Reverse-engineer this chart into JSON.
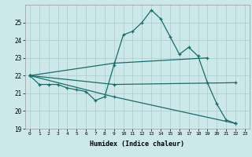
{
  "xlabel": "Humidex (Indice chaleur)",
  "ylabel": "",
  "background_color": "#cce8e8",
  "grid_color": "#aacccc",
  "line_color": "#1a6b6b",
  "xlim": [
    -0.5,
    23.5
  ],
  "ylim": [
    19,
    26
  ],
  "yticks": [
    19,
    20,
    21,
    22,
    23,
    24,
    25
  ],
  "xticks": [
    0,
    1,
    2,
    3,
    4,
    5,
    6,
    7,
    8,
    9,
    10,
    11,
    12,
    13,
    14,
    15,
    16,
    17,
    18,
    19,
    20,
    21,
    22,
    23
  ],
  "series": [
    {
      "x": [
        0,
        1,
        2,
        3,
        4,
        5,
        6,
        7,
        8,
        9,
        10,
        11,
        12,
        13,
        14,
        15,
        16,
        17,
        18,
        19,
        20,
        21,
        22
      ],
      "y": [
        22.0,
        21.5,
        21.5,
        21.5,
        21.3,
        21.2,
        21.1,
        20.6,
        20.8,
        22.6,
        24.3,
        24.5,
        25.0,
        25.7,
        25.2,
        24.2,
        23.2,
        23.6,
        23.1,
        21.6,
        20.4,
        19.5,
        19.3
      ]
    },
    {
      "x": [
        0,
        9,
        19
      ],
      "y": [
        22.0,
        22.7,
        23.0
      ]
    },
    {
      "x": [
        0,
        9,
        22
      ],
      "y": [
        22.0,
        21.5,
        21.6
      ]
    },
    {
      "x": [
        0,
        9,
        22
      ],
      "y": [
        22.0,
        20.8,
        19.3
      ]
    }
  ]
}
